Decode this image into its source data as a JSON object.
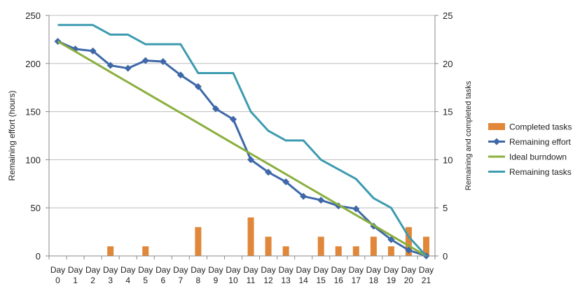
{
  "chart_data": {
    "type": "bar+line",
    "categories": [
      "Day 0",
      "Day 1",
      "Day 2",
      "Day 3",
      "Day 4",
      "Day 5",
      "Day 6",
      "Day 7",
      "Day 8",
      "Day 9",
      "Day 10",
      "Day 11",
      "Day 12",
      "Day 13",
      "Day 14",
      "Day 15",
      "Day 16",
      "Day 17",
      "Day 18",
      "Day 19",
      "Day 20",
      "Day 21"
    ],
    "ylabel": "Remaining effort (hours)",
    "y2label": "Remaining and completed tasks",
    "ylim": [
      0,
      250
    ],
    "y2lim": [
      0,
      25
    ],
    "yticks": [
      "0",
      "50",
      "100",
      "150",
      "200",
      "250"
    ],
    "y2ticks": [
      "0",
      "5",
      "10",
      "15",
      "20",
      "25"
    ],
    "grid": true,
    "legend_position": "right",
    "series": [
      {
        "name": "Completed tasks",
        "type": "bar",
        "axis": "right",
        "color": "#E0873A",
        "values": [
          0,
          0,
          0,
          1,
          0,
          1,
          0,
          0,
          3,
          0,
          0,
          4,
          2,
          1,
          0,
          2,
          1,
          1,
          2,
          1,
          3,
          2
        ]
      },
      {
        "name": "Remaining effort",
        "type": "line",
        "marker": "diamond",
        "axis": "left",
        "color": "#3E68A8",
        "values": [
          223,
          215,
          213,
          198,
          195,
          203,
          202,
          188,
          176,
          153,
          142,
          100,
          87,
          77,
          62,
          58,
          52,
          49,
          31,
          17,
          6,
          0
        ]
      },
      {
        "name": "Ideal burndown",
        "type": "line",
        "axis": "left",
        "color": "#8AAF3E",
        "values": [
          223,
          212.4,
          201.8,
          191.1,
          180.5,
          169.9,
          159.3,
          148.7,
          138.1,
          127.4,
          116.8,
          106.2,
          95.6,
          85,
          74.3,
          63.7,
          53.1,
          42.5,
          31.9,
          21.2,
          10.6,
          0
        ]
      },
      {
        "name": "Remaining tasks",
        "type": "line",
        "axis": "right",
        "color": "#3D9BB0",
        "values": [
          24,
          24,
          24,
          23,
          23,
          22,
          22,
          22,
          19,
          19,
          19,
          15,
          13,
          12,
          12,
          10,
          9,
          8,
          6,
          5,
          2,
          0
        ]
      }
    ]
  }
}
